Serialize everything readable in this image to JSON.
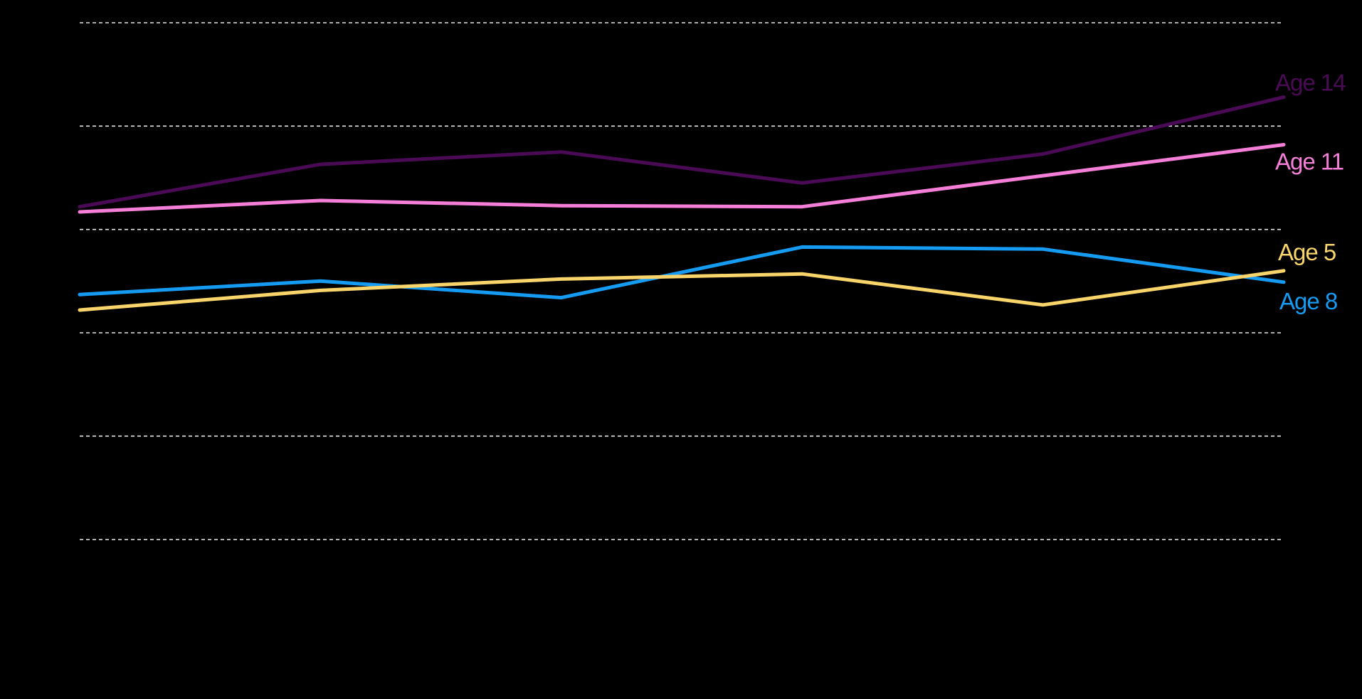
{
  "chart_data": {
    "type": "line",
    "x": [
      1,
      2,
      3,
      4,
      5,
      6
    ],
    "ylim": [
      0,
      6
    ],
    "grid": true,
    "series": [
      {
        "name": "Age 14",
        "color": "#4a0a55",
        "values": [
          4.22,
          4.63,
          4.75,
          4.45,
          4.73,
          5.28
        ]
      },
      {
        "name": "Age 11",
        "color": "#f57fd8",
        "values": [
          4.17,
          4.28,
          4.23,
          4.22,
          4.52,
          4.82
        ]
      },
      {
        "name": "Age 5",
        "color": "#f8d46b",
        "values": [
          3.22,
          3.41,
          3.52,
          3.57,
          3.27,
          3.6
        ]
      },
      {
        "name": "Age 8",
        "color": "#169bf2",
        "values": [
          3.37,
          3.5,
          3.34,
          3.83,
          3.81,
          3.49
        ]
      }
    ]
  }
}
